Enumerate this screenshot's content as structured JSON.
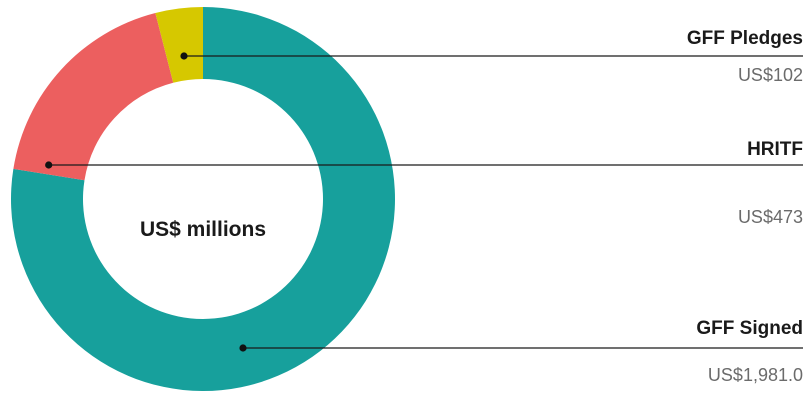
{
  "chart_data": {
    "type": "pie",
    "center_label": "US$ millions",
    "slices": [
      {
        "name": "GFF Signed",
        "value_label": "US$1,981.0",
        "value": 1981.0,
        "color": "#17a09c"
      },
      {
        "name": "HRITF",
        "value_label": "US$473",
        "value": 473,
        "color": "#ec5f5f"
      },
      {
        "name": "GFF Pledges",
        "value_label": "US$102",
        "value": 102,
        "color": "#d6c800"
      }
    ]
  }
}
